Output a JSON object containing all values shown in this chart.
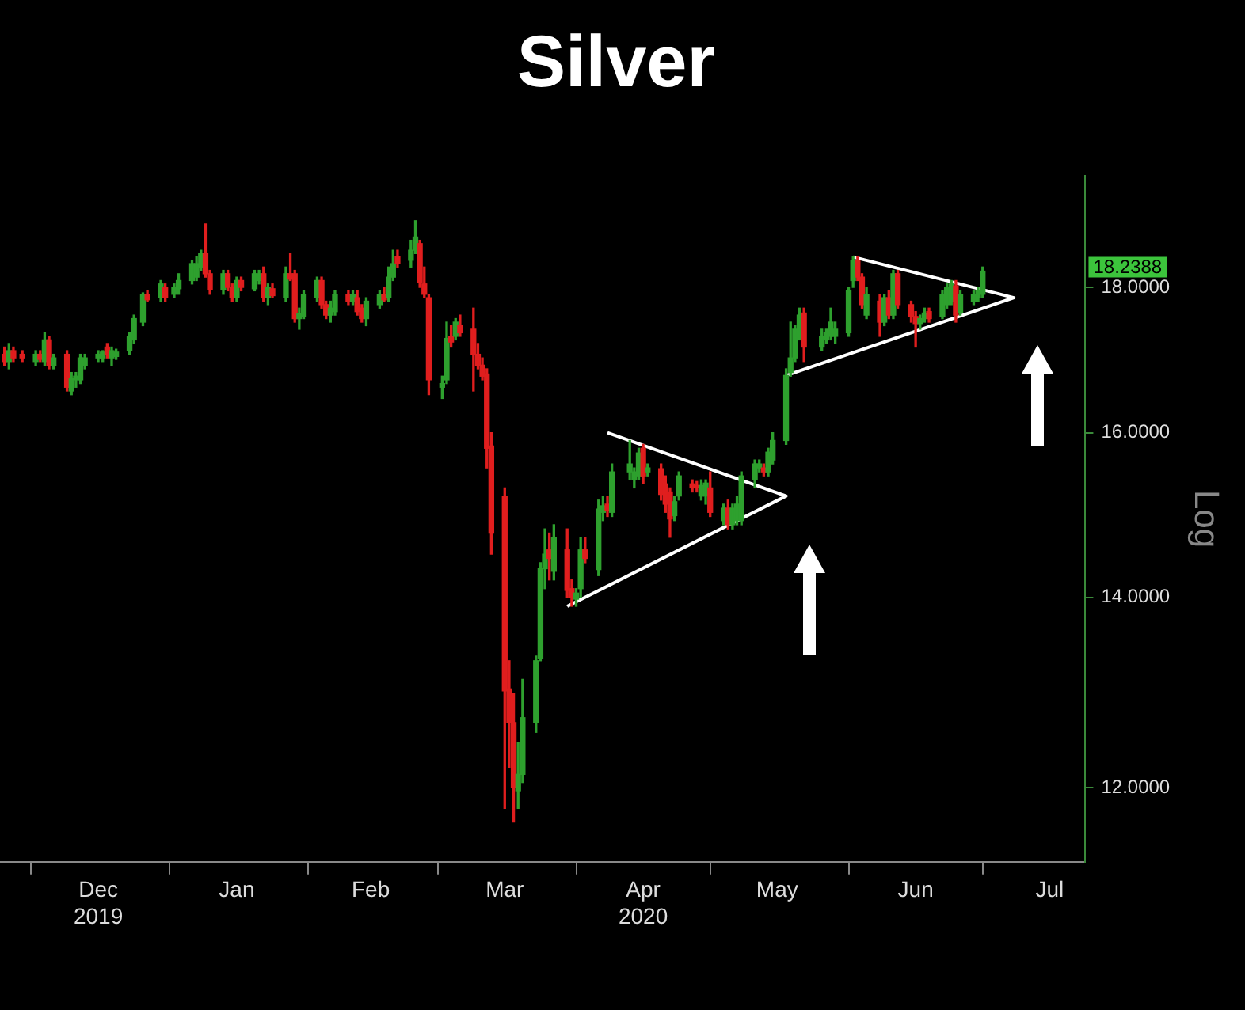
{
  "chart_data": {
    "type": "candlestick",
    "title": "Silver",
    "ylabel": "Log",
    "log": true,
    "grid": false,
    "legend": false,
    "xlim": [
      "2019-11-24",
      "2020-07-24"
    ],
    "ylim": [
      11.3,
      19.7
    ],
    "yticks": [
      {
        "value": 12,
        "label": "12.0000"
      },
      {
        "value": 14,
        "label": "14.0000"
      },
      {
        "value": 16,
        "label": "16.0000"
      },
      {
        "value": 18,
        "label": "18.0000"
      }
    ],
    "xticks": [
      {
        "value": "2019-12-01",
        "label": null
      },
      {
        "value": "2019-12-16",
        "label": "Dec\n2019"
      },
      {
        "value": "2020-01-01",
        "label": null
      },
      {
        "value": "2020-01-16",
        "label": "Jan"
      },
      {
        "value": "2020-02-01",
        "label": null
      },
      {
        "value": "2020-02-15",
        "label": "Feb"
      },
      {
        "value": "2020-03-01",
        "label": null
      },
      {
        "value": "2020-03-16",
        "label": "Mar"
      },
      {
        "value": "2020-04-01",
        "label": null
      },
      {
        "value": "2020-04-16",
        "label": "Apr\n2020"
      },
      {
        "value": "2020-05-01",
        "label": null
      },
      {
        "value": "2020-05-16",
        "label": "May"
      },
      {
        "value": "2020-06-01",
        "label": null
      },
      {
        "value": "2020-06-16",
        "label": "Jun"
      },
      {
        "value": "2020-07-01",
        "label": null
      },
      {
        "value": "2020-07-16",
        "label": "Jul"
      }
    ],
    "x": [
      "2019-11-25",
      "2019-11-26",
      "2019-11-27",
      "2019-11-29",
      "2019-12-02",
      "2019-12-03",
      "2019-12-04",
      "2019-12-05",
      "2019-12-06",
      "2019-12-09",
      "2019-12-10",
      "2019-12-11",
      "2019-12-12",
      "2019-12-13",
      "2019-12-16",
      "2019-12-17",
      "2019-12-18",
      "2019-12-19",
      "2019-12-20",
      "2019-12-23",
      "2019-12-24",
      "2019-12-26",
      "2019-12-27",
      "2019-12-30",
      "2019-12-31",
      "2020-01-02",
      "2020-01-03",
      "2020-01-06",
      "2020-01-07",
      "2020-01-08",
      "2020-01-09",
      "2020-01-10",
      "2020-01-13",
      "2020-01-14",
      "2020-01-15",
      "2020-01-16",
      "2020-01-17",
      "2020-01-20",
      "2020-01-21",
      "2020-01-22",
      "2020-01-23",
      "2020-01-24",
      "2020-01-27",
      "2020-01-28",
      "2020-01-29",
      "2020-01-30",
      "2020-01-31",
      "2020-02-03",
      "2020-02-04",
      "2020-02-05",
      "2020-02-06",
      "2020-02-07",
      "2020-02-10",
      "2020-02-11",
      "2020-02-12",
      "2020-02-13",
      "2020-02-14",
      "2020-02-17",
      "2020-02-18",
      "2020-02-19",
      "2020-02-20",
      "2020-02-21",
      "2020-02-24",
      "2020-02-25",
      "2020-02-26",
      "2020-02-27",
      "2020-02-28",
      "2020-03-02",
      "2020-03-03",
      "2020-03-04",
      "2020-03-05",
      "2020-03-06",
      "2020-03-09",
      "2020-03-10",
      "2020-03-11",
      "2020-03-12",
      "2020-03-13",
      "2020-03-16",
      "2020-03-17",
      "2020-03-18",
      "2020-03-19",
      "2020-03-20",
      "2020-03-23",
      "2020-03-24",
      "2020-03-25",
      "2020-03-26",
      "2020-03-27",
      "2020-03-30",
      "2020-03-31",
      "2020-04-01",
      "2020-04-02",
      "2020-04-03",
      "2020-04-06",
      "2020-04-07",
      "2020-04-08",
      "2020-04-09",
      "2020-04-13",
      "2020-04-14",
      "2020-04-15",
      "2020-04-16",
      "2020-04-17",
      "2020-04-20",
      "2020-04-21",
      "2020-04-22",
      "2020-04-23",
      "2020-04-24",
      "2020-04-27",
      "2020-04-28",
      "2020-04-29",
      "2020-04-30",
      "2020-05-01",
      "2020-05-04",
      "2020-05-05",
      "2020-05-06",
      "2020-05-07",
      "2020-05-08",
      "2020-05-11",
      "2020-05-12",
      "2020-05-13",
      "2020-05-14",
      "2020-05-15",
      "2020-05-18",
      "2020-05-19",
      "2020-05-20",
      "2020-05-21",
      "2020-05-22",
      "2020-05-26",
      "2020-05-27",
      "2020-05-28",
      "2020-05-29",
      "2020-06-01",
      "2020-06-02",
      "2020-06-03",
      "2020-06-04",
      "2020-06-05",
      "2020-06-08",
      "2020-06-09",
      "2020-06-10",
      "2020-06-11",
      "2020-06-12",
      "2020-06-15",
      "2020-06-16",
      "2020-06-17",
      "2020-06-18",
      "2020-06-19",
      "2020-06-22",
      "2020-06-23",
      "2020-06-24",
      "2020-06-25",
      "2020-06-26",
      "2020-06-29",
      "2020-06-30",
      "2020-07-01"
    ],
    "ohlc": [
      [
        17.05,
        17.15,
        16.9,
        16.95
      ],
      [
        16.95,
        17.2,
        16.85,
        17.1
      ],
      [
        17.1,
        17.15,
        16.95,
        17.0
      ],
      [
        17.05,
        17.1,
        16.95,
        17.0
      ],
      [
        16.95,
        17.1,
        16.9,
        17.05
      ],
      [
        17.05,
        17.1,
        16.95,
        16.98
      ],
      [
        16.95,
        17.35,
        16.9,
        17.25
      ],
      [
        17.25,
        17.3,
        16.85,
        16.9
      ],
      [
        16.9,
        17.05,
        16.85,
        17.0
      ],
      [
        17.05,
        17.1,
        16.55,
        16.6
      ],
      [
        16.55,
        16.8,
        16.5,
        16.72
      ],
      [
        16.7,
        16.8,
        16.6,
        16.75
      ],
      [
        16.7,
        17.05,
        16.65,
        17.0
      ],
      [
        16.9,
        17.05,
        16.85,
        17.0
      ],
      [
        17.0,
        17.1,
        16.95,
        17.05
      ],
      [
        17.0,
        17.1,
        16.95,
        17.08
      ],
      [
        17.15,
        17.2,
        17.0,
        17.05
      ],
      [
        17.0,
        17.15,
        16.9,
        17.1
      ],
      [
        17.02,
        17.12,
        16.98,
        17.08
      ],
      [
        17.1,
        17.35,
        17.05,
        17.3
      ],
      [
        17.25,
        17.6,
        17.2,
        17.55
      ],
      [
        17.5,
        17.92,
        17.45,
        17.9
      ],
      [
        17.9,
        17.95,
        17.8,
        17.82
      ],
      [
        17.85,
        18.1,
        17.8,
        18.05
      ],
      [
        18.0,
        18.05,
        17.8,
        17.85
      ],
      [
        17.9,
        18.05,
        17.85,
        18.0
      ],
      [
        17.98,
        18.2,
        17.9,
        18.1
      ],
      [
        18.1,
        18.4,
        18.05,
        18.35
      ],
      [
        18.15,
        18.45,
        18.1,
        18.35
      ],
      [
        18.3,
        18.55,
        18.25,
        18.5
      ],
      [
        18.5,
        18.95,
        18.15,
        18.2
      ],
      [
        18.2,
        18.25,
        17.9,
        17.97
      ],
      [
        17.97,
        18.25,
        17.9,
        18.2
      ],
      [
        18.2,
        18.25,
        17.95,
        18.0
      ],
      [
        18.0,
        18.05,
        17.8,
        17.85
      ],
      [
        17.85,
        18.15,
        17.8,
        18.1
      ],
      [
        18.1,
        18.15,
        17.95,
        18.0
      ],
      [
        17.98,
        18.25,
        17.95,
        18.2
      ],
      [
        18.1,
        18.25,
        18.05,
        18.2
      ],
      [
        18.2,
        18.3,
        17.8,
        17.85
      ],
      [
        17.85,
        18.05,
        17.75,
        18.0
      ],
      [
        17.98,
        18.05,
        17.85,
        17.88
      ],
      [
        17.85,
        18.3,
        17.8,
        18.2
      ],
      [
        18.2,
        18.5,
        18.1,
        18.12
      ],
      [
        18.2,
        18.25,
        17.5,
        17.55
      ],
      [
        17.55,
        17.7,
        17.4,
        17.62
      ],
      [
        17.58,
        17.95,
        17.55,
        17.9
      ],
      [
        17.85,
        18.15,
        17.8,
        18.1
      ],
      [
        18.1,
        18.15,
        17.7,
        17.75
      ],
      [
        17.75,
        17.8,
        17.55,
        17.6
      ],
      [
        17.6,
        17.8,
        17.5,
        17.7
      ],
      [
        17.65,
        17.95,
        17.6,
        17.9
      ],
      [
        17.9,
        17.95,
        17.75,
        17.8
      ],
      [
        17.8,
        17.95,
        17.75,
        17.9
      ],
      [
        17.85,
        17.95,
        17.6,
        17.65
      ],
      [
        17.7,
        17.75,
        17.5,
        17.55
      ],
      [
        17.55,
        17.85,
        17.45,
        17.8
      ],
      [
        17.75,
        17.95,
        17.7,
        17.9
      ],
      [
        17.9,
        18.0,
        17.8,
        17.82
      ],
      [
        17.85,
        18.3,
        17.8,
        18.15
      ],
      [
        18.15,
        18.55,
        18.1,
        18.35
      ],
      [
        18.45,
        18.55,
        18.3,
        18.35
      ],
      [
        18.4,
        18.7,
        18.3,
        18.55
      ],
      [
        18.55,
        19.0,
        18.5,
        18.75
      ],
      [
        18.65,
        18.7,
        18.0,
        18.07
      ],
      [
        18.05,
        18.3,
        17.85,
        17.9
      ],
      [
        17.85,
        17.9,
        16.5,
        16.7
      ],
      [
        16.6,
        16.75,
        16.45,
        16.65
      ],
      [
        16.7,
        17.5,
        16.65,
        17.27
      ],
      [
        17.3,
        17.45,
        17.15,
        17.22
      ],
      [
        17.3,
        17.55,
        17.25,
        17.5
      ],
      [
        17.45,
        17.6,
        17.3,
        17.35
      ],
      [
        17.4,
        17.7,
        16.55,
        17.05
      ],
      [
        17.05,
        17.2,
        16.85,
        16.9
      ],
      [
        16.9,
        17.0,
        16.7,
        16.75
      ],
      [
        16.78,
        16.85,
        15.55,
        15.8
      ],
      [
        15.83,
        16.0,
        14.5,
        14.75
      ],
      [
        15.19,
        15.3,
        11.8,
        12.98
      ],
      [
        13.0,
        13.3,
        12.2,
        12.65
      ],
      [
        12.65,
        12.95,
        11.67,
        12.0
      ],
      [
        11.97,
        12.45,
        11.8,
        12.13
      ],
      [
        12.13,
        13.1,
        12.05,
        12.7
      ],
      [
        12.65,
        13.35,
        12.55,
        13.3
      ],
      [
        13.33,
        14.4,
        13.3,
        14.33
      ],
      [
        14.33,
        14.8,
        14.1,
        14.5
      ],
      [
        14.55,
        14.75,
        14.2,
        14.45
      ],
      [
        14.3,
        14.85,
        14.2,
        14.7
      ],
      [
        14.55,
        14.8,
        14.0,
        14.08
      ],
      [
        14.1,
        14.2,
        13.9,
        14.0
      ],
      [
        13.98,
        14.1,
        13.9,
        14.05
      ],
      [
        14.1,
        14.7,
        14.0,
        14.55
      ],
      [
        14.55,
        14.7,
        14.4,
        14.45
      ],
      [
        14.32,
        15.15,
        14.25,
        15.04
      ],
      [
        15.0,
        15.2,
        14.9,
        15.08
      ],
      [
        15.1,
        15.2,
        14.95,
        15.02
      ],
      [
        15.0,
        15.6,
        14.95,
        15.5
      ],
      [
        15.5,
        15.9,
        15.4,
        15.6
      ],
      [
        15.4,
        15.55,
        15.3,
        15.5
      ],
      [
        15.45,
        15.8,
        15.4,
        15.74
      ],
      [
        15.8,
        15.85,
        15.35,
        15.45
      ],
      [
        15.5,
        15.6,
        15.45,
        15.55
      ],
      [
        15.54,
        15.6,
        15.15,
        15.22
      ],
      [
        15.35,
        15.45,
        15.0,
        15.1
      ],
      [
        15.25,
        15.3,
        14.7,
        14.92
      ],
      [
        14.96,
        15.2,
        14.9,
        15.13
      ],
      [
        15.2,
        15.5,
        15.15,
        15.45
      ],
      [
        15.35,
        15.4,
        15.25,
        15.3
      ],
      [
        15.33,
        15.38,
        15.25,
        15.3
      ],
      [
        15.2,
        15.4,
        15.15,
        15.33
      ],
      [
        15.2,
        15.4,
        15.1,
        15.36
      ],
      [
        15.3,
        15.5,
        14.95,
        15.0
      ],
      [
        14.9,
        15.1,
        14.85,
        15.05
      ],
      [
        15.05,
        15.15,
        14.8,
        14.85
      ],
      [
        14.85,
        15.1,
        14.8,
        15.05
      ],
      [
        14.9,
        15.2,
        14.85,
        15.1
      ],
      [
        14.9,
        15.5,
        14.85,
        15.45
      ],
      [
        15.4,
        15.65,
        15.3,
        15.6
      ],
      [
        15.55,
        15.65,
        15.5,
        15.6
      ],
      [
        15.55,
        15.6,
        15.45,
        15.5
      ],
      [
        15.5,
        15.8,
        15.45,
        15.75
      ],
      [
        15.65,
        16.0,
        15.6,
        15.9
      ],
      [
        15.9,
        16.85,
        15.85,
        16.76
      ],
      [
        16.8,
        17.5,
        16.75,
        17.0
      ],
      [
        17.0,
        17.45,
        16.95,
        17.4
      ],
      [
        17.3,
        17.7,
        17.25,
        17.6
      ],
      [
        17.63,
        17.7,
        16.95,
        17.15
      ],
      [
        17.15,
        17.4,
        17.1,
        17.3
      ],
      [
        17.25,
        17.4,
        17.2,
        17.35
      ],
      [
        17.3,
        17.7,
        17.25,
        17.5
      ],
      [
        17.3,
        17.5,
        17.2,
        17.4
      ],
      [
        17.35,
        18.0,
        17.3,
        17.95
      ],
      [
        18.1,
        18.45,
        18.0,
        18.4
      ],
      [
        18.4,
        18.45,
        18.1,
        18.15
      ],
      [
        18.15,
        18.2,
        17.7,
        17.75
      ],
      [
        17.6,
        18.0,
        17.55,
        17.9
      ],
      [
        17.8,
        17.9,
        17.3,
        17.5
      ],
      [
        17.5,
        17.9,
        17.45,
        17.85
      ],
      [
        17.85,
        17.95,
        17.55,
        17.6
      ],
      [
        17.6,
        18.25,
        17.55,
        18.2
      ],
      [
        18.2,
        18.25,
        17.7,
        17.75
      ],
      [
        17.75,
        17.8,
        17.5,
        17.58
      ],
      [
        17.58,
        17.65,
        17.15,
        17.48
      ],
      [
        17.48,
        17.6,
        17.4,
        17.55
      ],
      [
        17.55,
        17.7,
        17.5,
        17.63
      ],
      [
        17.65,
        17.7,
        17.5,
        17.55
      ],
      [
        17.58,
        17.95,
        17.55,
        17.9
      ],
      [
        17.75,
        18.05,
        17.7,
        18.0
      ],
      [
        17.8,
        18.1,
        17.75,
        18.05
      ],
      [
        18.02,
        18.1,
        17.5,
        17.6
      ],
      [
        17.63,
        17.95,
        17.6,
        17.9
      ],
      [
        17.8,
        17.95,
        17.75,
        17.9
      ],
      [
        17.85,
        18.0,
        17.8,
        17.95
      ],
      [
        17.9,
        18.3,
        17.85,
        18.2388
      ]
    ],
    "series": [
      {
        "type": "line",
        "color": "#ffffff",
        "x": [
          "2020-04-08",
          "2020-05-18",
          "2020-03-30"
        ],
        "values": [
          16.0,
          15.2,
          13.9
        ]
      },
      {
        "type": "line",
        "color": "#ffffff",
        "x": [
          "2020-06-02",
          "2020-07-08",
          "2020-05-18"
        ],
        "values": [
          18.45,
          17.85,
          16.76
        ]
      }
    ],
    "annotations": [
      "18.2388"
    ]
  }
}
